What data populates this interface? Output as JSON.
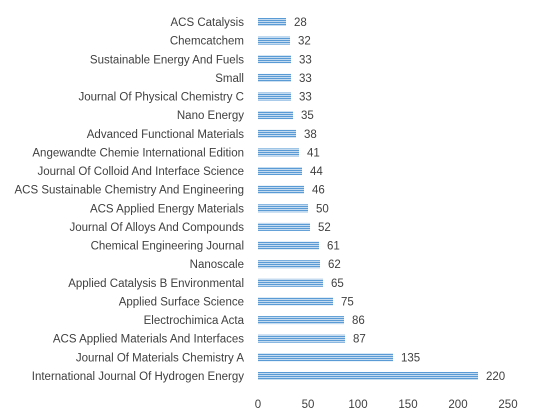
{
  "chart_data": {
    "type": "bar",
    "orientation": "horizontal",
    "title": "",
    "xlabel": "",
    "ylabel": "",
    "xlim": [
      0,
      250
    ],
    "xticks": [
      0,
      50,
      100,
      150,
      200,
      250
    ],
    "grid": false,
    "legend": "none",
    "bar_color": "#5b9bd5",
    "bar_pattern": "horizontal-stripes",
    "categories": [
      "ACS Catalysis",
      "Chemcatchem",
      "Sustainable Energy And Fuels",
      "Small",
      "Journal Of Physical Chemistry C",
      "Nano Energy",
      "Advanced Functional Materials",
      "Angewandte Chemie International Edition",
      "Journal Of Colloid And Interface Science",
      "ACS Sustainable Chemistry And Engineering",
      "ACS Applied Energy Materials",
      "Journal Of Alloys And Compounds",
      "Chemical Engineering Journal",
      "Nanoscale",
      "Applied Catalysis B Environmental",
      "Applied Surface Science",
      "Electrochimica Acta",
      "ACS Applied Materials And Interfaces",
      "Journal Of Materials Chemistry A",
      "International Journal Of Hydrogen Energy"
    ],
    "values": [
      28,
      32,
      33,
      33,
      33,
      35,
      38,
      41,
      44,
      46,
      50,
      52,
      61,
      62,
      65,
      75,
      86,
      87,
      135,
      220
    ]
  }
}
